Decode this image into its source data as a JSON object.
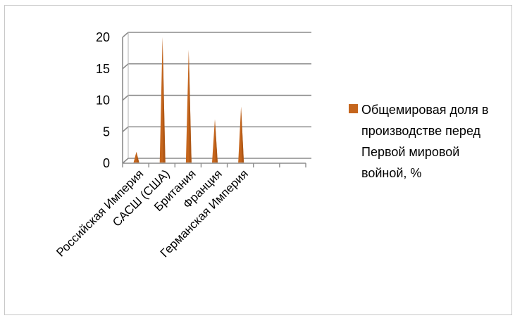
{
  "chart_data": {
    "type": "area",
    "categories": [
      "Российская Империя",
      "САСШ (США)",
      "Британия",
      "Франция",
      "Германская Империя"
    ],
    "series": [
      {
        "name": "Общемировая доля в производстве перед Первой мировой войной, %",
        "values": [
          1.8,
          20,
          18,
          7,
          9
        ],
        "color": "#c5651c"
      }
    ],
    "ylim": [
      0,
      20
    ],
    "yticks": [
      "0",
      "5",
      "10",
      "15",
      "20"
    ],
    "grid": true,
    "legend_position": "right"
  },
  "legend": {
    "label": "Общемировая доля в производстве перед Первой мировой войной, %"
  }
}
